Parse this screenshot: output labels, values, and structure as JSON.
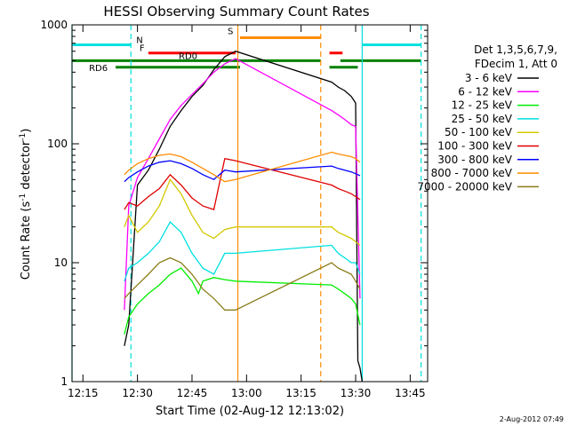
{
  "chart_data": {
    "type": "line",
    "title": "HESSI Observing Summary Count Rates",
    "xlabel": "Start Time (02-Aug-12 12:13:02)",
    "ylabel_main": "Count Rate (s",
    "ylabel_exp1": "-1",
    "ylabel_mid": " detector",
    "ylabel_exp2": "-1",
    "ylabel_end": ")",
    "y_scale": "log",
    "ylim": [
      1,
      1000
    ],
    "xlim": [
      12.2,
      13.83
    ],
    "x_ticks": [
      {
        "label": "12:15",
        "value": 12.25
      },
      {
        "label": "12:30",
        "value": 12.5
      },
      {
        "label": "12:45",
        "value": 12.75
      },
      {
        "label": "13:00",
        "value": 13.0
      },
      {
        "label": "13:15",
        "value": 13.25
      },
      {
        "label": "13:30",
        "value": 13.5
      },
      {
        "label": "13:45",
        "value": 13.75
      }
    ],
    "y_ticks": [
      {
        "label": "1",
        "value": 1
      },
      {
        "label": "10",
        "value": 10
      },
      {
        "label": "100",
        "value": 100
      },
      {
        "label": "1000",
        "value": 1000
      }
    ],
    "legend_header": [
      "Det 1,3,5,6,7,9,",
      "FDecim 1, Att 0"
    ],
    "legend_position": "right",
    "timestamp": "2-Aug-2012 07:49",
    "flags": [
      {
        "label": "N",
        "color": "#00e0e0",
        "segments": [
          [
            12.2,
            12.47
          ],
          [
            13.53,
            13.8
          ]
        ],
        "level": 680
      },
      {
        "label": "F",
        "color": "#ff0000",
        "segments": [
          [
            12.55,
            12.95
          ],
          [
            13.38,
            13.44
          ]
        ],
        "level": 580
      },
      {
        "label": "S",
        "color": "#ff8c00",
        "segments": [
          [
            12.97,
            13.34
          ]
        ],
        "level": 780
      },
      {
        "label": "RD0",
        "color": "#008000",
        "segments": [
          [
            12.2,
            13.34
          ],
          [
            13.43,
            13.8
          ]
        ],
        "level": 500
      },
      {
        "label": "RD6",
        "color": "#008000",
        "segments": [
          [
            12.4,
            12.97
          ],
          [
            13.38,
            13.51
          ]
        ],
        "level": 440
      }
    ],
    "vlines": [
      {
        "x": 12.2,
        "color": "#00e0e0",
        "style": "solid"
      },
      {
        "x": 12.47,
        "color": "#00e0e0",
        "style": "dashed"
      },
      {
        "x": 12.96,
        "color": "#ff8c00",
        "style": "solid"
      },
      {
        "x": 13.34,
        "color": "#ff8c00",
        "style": "dashed"
      },
      {
        "x": 13.53,
        "color": "#00e0e0",
        "style": "solid"
      },
      {
        "x": 13.8,
        "color": "#00e0e0",
        "style": "dashed"
      }
    ],
    "series": [
      {
        "name": "3 - 6 keV",
        "color": "#000000",
        "x": [
          12.44,
          12.46,
          12.5,
          12.55,
          12.6,
          12.65,
          12.7,
          12.75,
          12.8,
          12.85,
          12.9,
          12.95,
          13.39,
          13.42,
          13.45,
          13.48,
          13.5,
          13.51,
          13.52,
          13.53
        ],
        "y": [
          2.0,
          3.0,
          45,
          60,
          90,
          140,
          190,
          250,
          310,
          420,
          540,
          600,
          330,
          300,
          280,
          250,
          220,
          1.5,
          1.3,
          1.0
        ]
      },
      {
        "name": "6 - 12 keV",
        "color": "#ff00ff",
        "x": [
          12.44,
          12.46,
          12.5,
          12.55,
          12.6,
          12.65,
          12.7,
          12.75,
          12.8,
          12.85,
          12.9,
          12.95,
          13.39,
          13.42,
          13.45,
          13.48,
          13.5,
          13.52
        ],
        "y": [
          4.0,
          30,
          52,
          75,
          110,
          160,
          210,
          260,
          320,
          400,
          470,
          520,
          190,
          175,
          160,
          145,
          140,
          5.0
        ]
      },
      {
        "name": "12 - 25 keV",
        "color": "#00ee00",
        "x": [
          12.44,
          12.46,
          12.5,
          12.55,
          12.6,
          12.65,
          12.7,
          12.75,
          12.78,
          12.8,
          12.85,
          12.9,
          12.95,
          13.39,
          13.42,
          13.45,
          13.48,
          13.5,
          13.52
        ],
        "y": [
          2.5,
          3.5,
          4.5,
          5.5,
          6.5,
          8.0,
          9.0,
          7.0,
          5.5,
          7.0,
          7.5,
          7.2,
          7.0,
          6.5,
          6.0,
          5.5,
          5.0,
          4.5,
          3.0
        ]
      },
      {
        "name": "25 - 50 keV",
        "color": "#00e0e0",
        "x": [
          12.44,
          12.46,
          12.5,
          12.55,
          12.6,
          12.65,
          12.7,
          12.75,
          12.8,
          12.85,
          12.9,
          12.95,
          13.39,
          13.42,
          13.45,
          13.48,
          13.5,
          13.52
        ],
        "y": [
          7.0,
          9.0,
          10,
          12,
          15,
          22,
          18,
          12,
          9.0,
          8.0,
          12,
          12,
          14,
          12,
          11,
          10,
          10,
          8.0
        ]
      },
      {
        "name": "50 - 100 keV",
        "color": "#d4c800",
        "x": [
          12.44,
          12.46,
          12.5,
          12.55,
          12.6,
          12.65,
          12.7,
          12.75,
          12.8,
          12.85,
          12.9,
          12.95,
          13.39,
          13.42,
          13.45,
          13.48,
          13.5,
          13.52
        ],
        "y": [
          20,
          25,
          18,
          22,
          30,
          50,
          38,
          25,
          18,
          16,
          19,
          20,
          20,
          18,
          17,
          16,
          15,
          14
        ]
      },
      {
        "name": "100 - 300 keV",
        "color": "#e00000",
        "x": [
          12.44,
          12.46,
          12.5,
          12.55,
          12.6,
          12.65,
          12.7,
          12.75,
          12.8,
          12.85,
          12.9,
          12.95,
          13.39,
          13.42,
          13.45,
          13.48,
          13.5,
          13.52
        ],
        "y": [
          28,
          32,
          30,
          36,
          42,
          55,
          45,
          35,
          30,
          28,
          75,
          72,
          45,
          42,
          40,
          38,
          36,
          34
        ]
      },
      {
        "name": "300 - 800 keV",
        "color": "#0000ff",
        "x": [
          12.44,
          12.46,
          12.5,
          12.55,
          12.6,
          12.65,
          12.7,
          12.75,
          12.8,
          12.85,
          12.9,
          12.95,
          13.39,
          13.42,
          13.45,
          13.48,
          13.5,
          13.52
        ],
        "y": [
          48,
          52,
          58,
          65,
          70,
          72,
          68,
          62,
          55,
          50,
          60,
          58,
          65,
          62,
          60,
          58,
          56,
          54
        ]
      },
      {
        "name": "800 - 7000 keV",
        "color": "#ff8c00",
        "x": [
          12.44,
          12.46,
          12.5,
          12.55,
          12.6,
          12.65,
          12.7,
          12.75,
          12.8,
          12.85,
          12.9,
          12.95,
          13.39,
          13.42,
          13.45,
          13.48,
          13.5,
          13.52
        ],
        "y": [
          55,
          60,
          68,
          75,
          80,
          82,
          78,
          70,
          62,
          55,
          48,
          50,
          85,
          82,
          80,
          78,
          75,
          70
        ]
      },
      {
        "name": "7000 - 20000 keV",
        "color": "#8b7d1a",
        "x": [
          12.44,
          12.46,
          12.5,
          12.55,
          12.6,
          12.65,
          12.7,
          12.75,
          12.8,
          12.85,
          12.9,
          12.95,
          13.39,
          13.42,
          13.45,
          13.48,
          13.5,
          13.52
        ],
        "y": [
          5.0,
          5.5,
          6.5,
          8.0,
          10,
          11,
          10,
          8.0,
          6.0,
          5.0,
          4.0,
          4.0,
          10,
          9.0,
          8.5,
          8.0,
          7.0,
          6.0
        ]
      }
    ]
  }
}
